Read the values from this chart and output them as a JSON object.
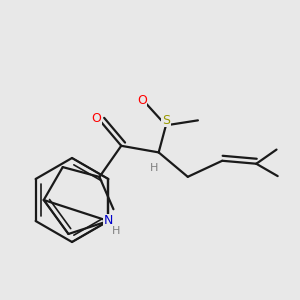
{
  "background_color": "#e8e8e8",
  "bond_color": "#1a1a1a",
  "atom_colors": {
    "O": "#ff0000",
    "S": "#999900",
    "N": "#0000cc",
    "H": "#808080",
    "C": "#1a1a1a"
  },
  "figsize": [
    3.0,
    3.0
  ],
  "dpi": 100,
  "xlim": [
    0,
    300
  ],
  "ylim": [
    0,
    300
  ]
}
